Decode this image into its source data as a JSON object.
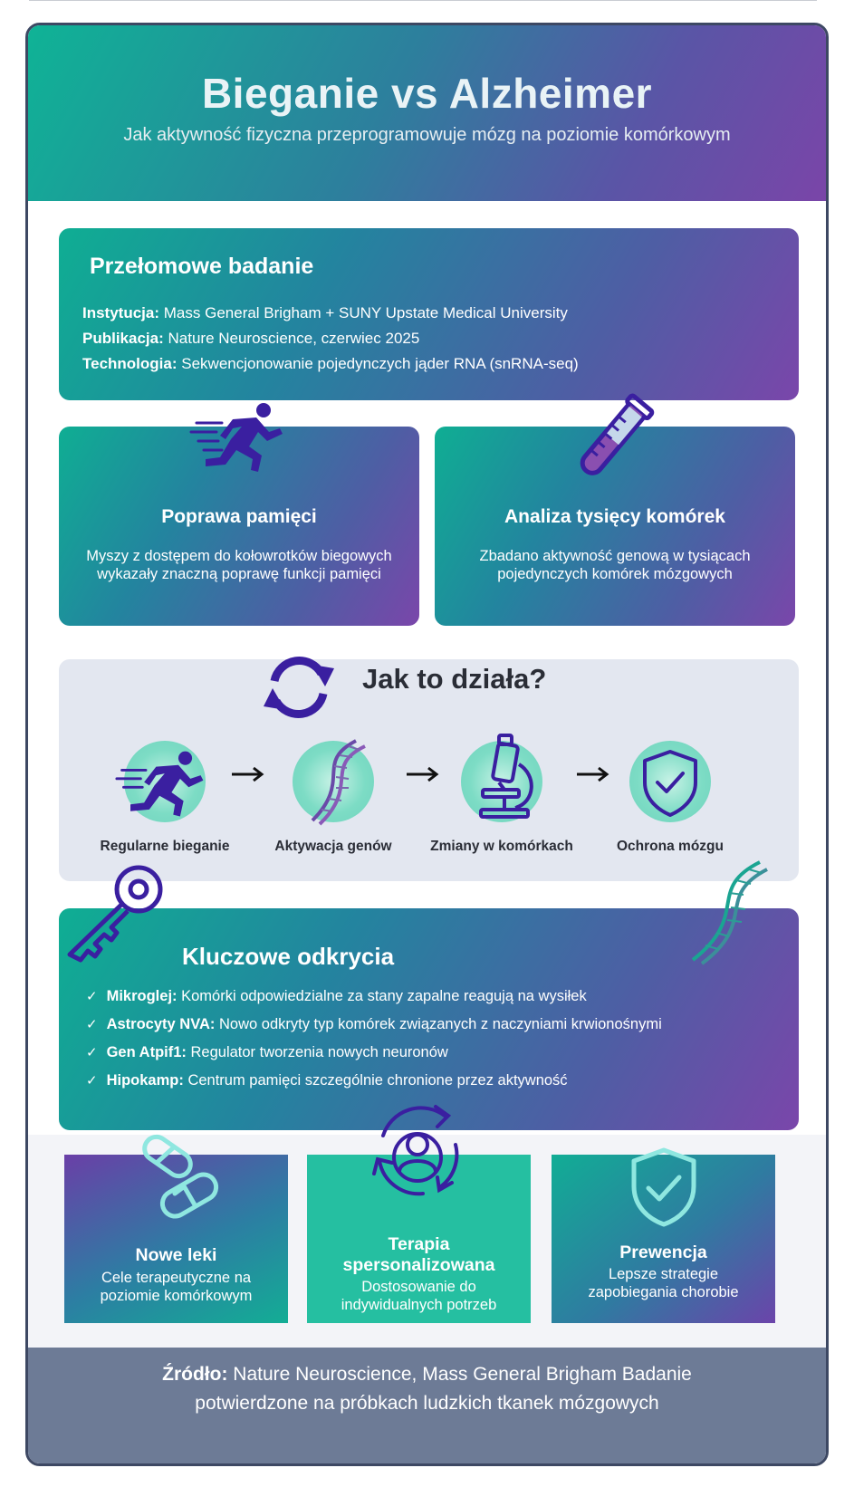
{
  "header": {
    "title": "Bieganie vs Alzheimer",
    "subtitle": "Jak aktywność fizyczna przeprogramowuje mózg na poziomie komórkowym"
  },
  "study": {
    "title": "Przełomowe badanie",
    "rows": [
      {
        "label": "Instytucja:",
        "value": "Mass General Brigham + SUNY Upstate Medical University"
      },
      {
        "label": "Publikacja:",
        "value": "Nature Neuroscience, czerwiec 2025"
      },
      {
        "label": "Technologia:",
        "value": "Sekwencjonowanie pojedynczych jąder RNA (snRNA-seq)"
      }
    ]
  },
  "features": [
    {
      "icon": "runner-icon",
      "title": "Poprawa pamięci",
      "text": "Myszy z dostępem do kołowrotków biegowych wykazały znaczną poprawę funkcji pamięci"
    },
    {
      "icon": "test-tube-icon",
      "title": "Analiza tysięcy komórek",
      "text": "Zbadano aktywność genową w tysiącach pojedynczych komórek mózgowych"
    }
  ],
  "howto": {
    "title": "Jak to działa?",
    "steps": [
      {
        "icon": "runner-icon",
        "label": "Regularne bieganie"
      },
      {
        "icon": "dna-icon",
        "label": "Aktywacja genów"
      },
      {
        "icon": "microscope-icon",
        "label": "Zmiany w komórkach"
      },
      {
        "icon": "shield-check-icon",
        "label": "Ochrona mózgu"
      }
    ]
  },
  "keys": {
    "title": "Kluczowe odkrycia",
    "items": [
      {
        "label": "Mikroglej:",
        "value": "Komórki odpowiedzialne za stany zapalne reagują na wysiłek"
      },
      {
        "label": "Astrocyty NVA:",
        "value": "Nowo odkryty typ komórek związanych z naczyniami krwionośnymi"
      },
      {
        "label": "Gen Atpif1:",
        "value": "Regulator tworzenia nowych neuronów"
      },
      {
        "label": "Hipokamp:",
        "value": "Centrum pamięci szczególnie chronione przez aktywność"
      }
    ]
  },
  "boxes": [
    {
      "icon": "capsules-icon",
      "title": "Nowe leki",
      "text_lines": [
        "Cele terapeutyczne na",
        "poziomie komórkowym"
      ]
    },
    {
      "icon": "person-cycle-icon",
      "title_lines": [
        "Terapia",
        "spersonalizowana"
      ],
      "text_lines": [
        "Dostosowanie do",
        "indywidualnych potrzeb"
      ]
    },
    {
      "icon": "shield-check-icon",
      "title": "Prewencja",
      "text_lines": [
        "Lepsze strategie",
        "zapobiegania chorobie"
      ]
    }
  ],
  "footer": {
    "label": "Źródło:",
    "line1": "Nature Neuroscience, Mass General Brigham Badanie",
    "line2": "potwierdzone na próbkach ludzkich tkanek mózgowych"
  },
  "colors": {
    "teal": "#0fb396",
    "purple": "#7a45a8",
    "icon_purple": "#3a1fa0",
    "footer": "#6d7b96"
  }
}
